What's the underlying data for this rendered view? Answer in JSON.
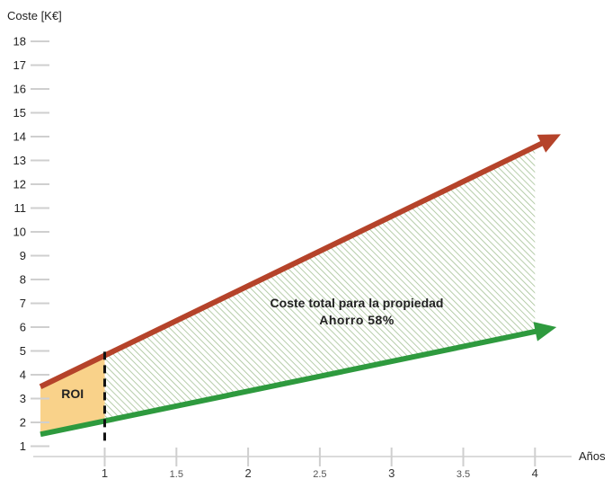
{
  "chart_data": {
    "type": "line",
    "title": "",
    "xlabel": "Años",
    "ylabel": "Coste [K€]",
    "xlim": [
      0.55,
      4.3
    ],
    "ylim": [
      0.5,
      18.6
    ],
    "x_ticks": [
      {
        "value": 1,
        "label": "1",
        "major": true
      },
      {
        "value": 1.5,
        "label": "1.5",
        "major": false
      },
      {
        "value": 2,
        "label": "2",
        "major": true
      },
      {
        "value": 2.5,
        "label": "2.5",
        "major": false
      },
      {
        "value": 3,
        "label": "3",
        "major": true
      },
      {
        "value": 3.5,
        "label": "3.5",
        "major": false
      },
      {
        "value": 4,
        "label": "4",
        "major": true
      }
    ],
    "y_ticks": [
      1,
      2,
      3,
      4,
      5,
      6,
      7,
      8,
      9,
      10,
      11,
      12,
      13,
      14,
      15,
      16,
      17,
      18
    ],
    "grid": false,
    "series": [
      {
        "color": "#b5432a",
        "x": [
          0.55,
          4.18
        ],
        "y": [
          3.5,
          14.1
        ]
      },
      {
        "color": "#2e9a3e",
        "x": [
          0.55,
          4.15
        ],
        "y": [
          1.5,
          6.0
        ]
      }
    ],
    "roi_region": {
      "label": "ROI",
      "x_start": 0.55,
      "x_end": 1,
      "fill": "#f9d28a"
    },
    "savings_region": {
      "x_start": 1,
      "x_end": 4,
      "hatch_color": "#9bb98d"
    },
    "roi_marker_x": 1,
    "annotations": {
      "savings_line1": "Coste total para la propiedad",
      "savings_line2": "Ahorro 58%"
    }
  }
}
